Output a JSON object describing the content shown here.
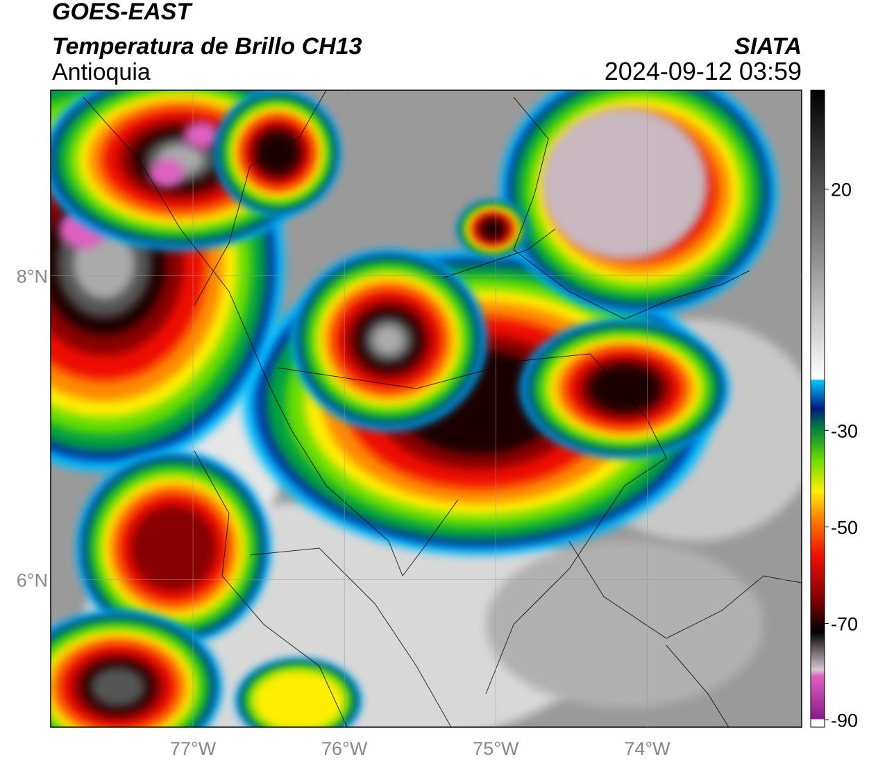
{
  "header": {
    "title": "GOES-EAST",
    "subtitle": "Temperatura de Brillo CH13",
    "region": "Antioquia",
    "source": "SIATA",
    "timestamp": "2024-09-12 03:59"
  },
  "map": {
    "xlim": [
      -77.94,
      -72.98
    ],
    "ylim": [
      5.03,
      9.22
    ],
    "xticks": [
      {
        "value": -77,
        "label": "77°W"
      },
      {
        "value": -76,
        "label": "76°W"
      },
      {
        "value": -75,
        "label": "75°W"
      },
      {
        "value": -74,
        "label": "74°W"
      }
    ],
    "yticks": [
      {
        "value": 8,
        "label": "8°N"
      },
      {
        "value": 6,
        "label": "6°N"
      }
    ],
    "grid": true
  },
  "colorbar": {
    "lim": [
      -91.5,
      40.5
    ],
    "ticks": [
      20,
      -30,
      -50,
      -70,
      -90
    ]
  }
}
